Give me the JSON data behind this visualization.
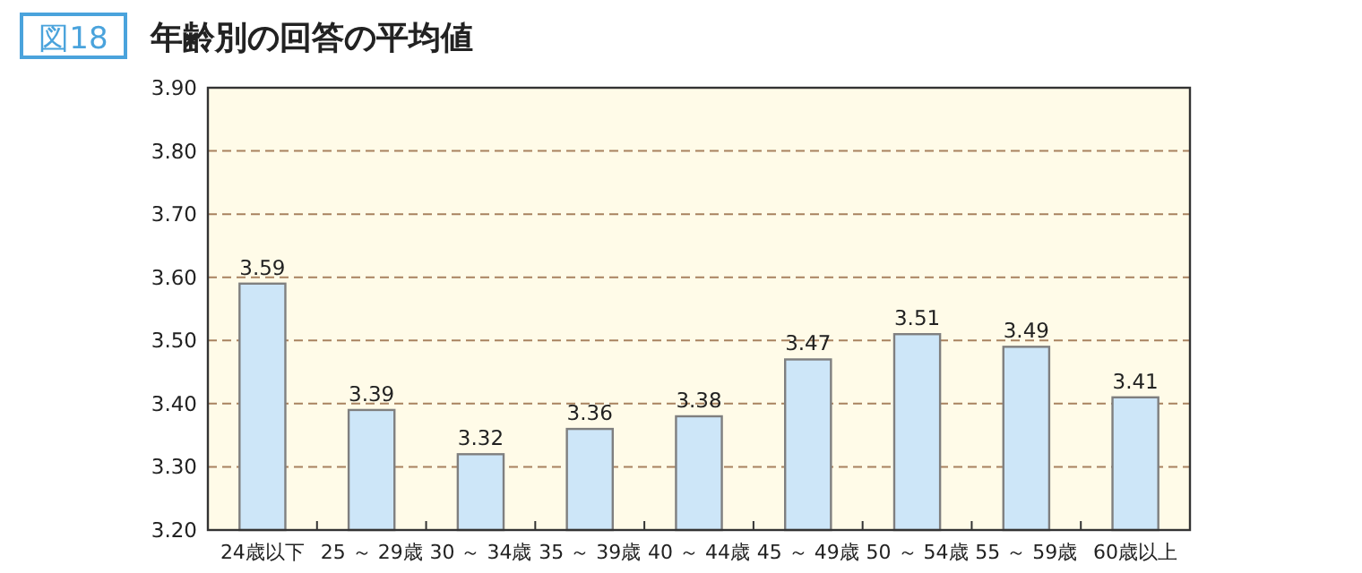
{
  "chart_data": {
    "type": "bar",
    "title": "年齢別の回答の平均値",
    "annotations": [
      "図18"
    ],
    "categories": [
      "24歳以下",
      "25 ～ 29歳",
      "30 ～ 34歳",
      "35 ～ 39歳",
      "40 ～ 44歳",
      "45 ～ 49歳",
      "50 ～ 54歳",
      "55 ～ 59歳",
      "60歳以上"
    ],
    "values": [
      3.59,
      3.39,
      3.32,
      3.36,
      3.38,
      3.47,
      3.51,
      3.49,
      3.41
    ],
    "color": "#cde6f8",
    "data_labels": true,
    "ylim": [
      3.2,
      3.9
    ],
    "yticks": [
      {
        "value": 3.2,
        "label": "3.20"
      },
      {
        "value": 3.3,
        "label": "3.30"
      },
      {
        "value": 3.4,
        "label": "3.40"
      },
      {
        "value": 3.5,
        "label": "3.50"
      },
      {
        "value": 3.6,
        "label": "3.60"
      },
      {
        "value": 3.7,
        "label": "3.70"
      },
      {
        "value": 3.8,
        "label": "3.80"
      },
      {
        "value": 3.9,
        "label": "3.90"
      }
    ],
    "grid": "y"
  }
}
